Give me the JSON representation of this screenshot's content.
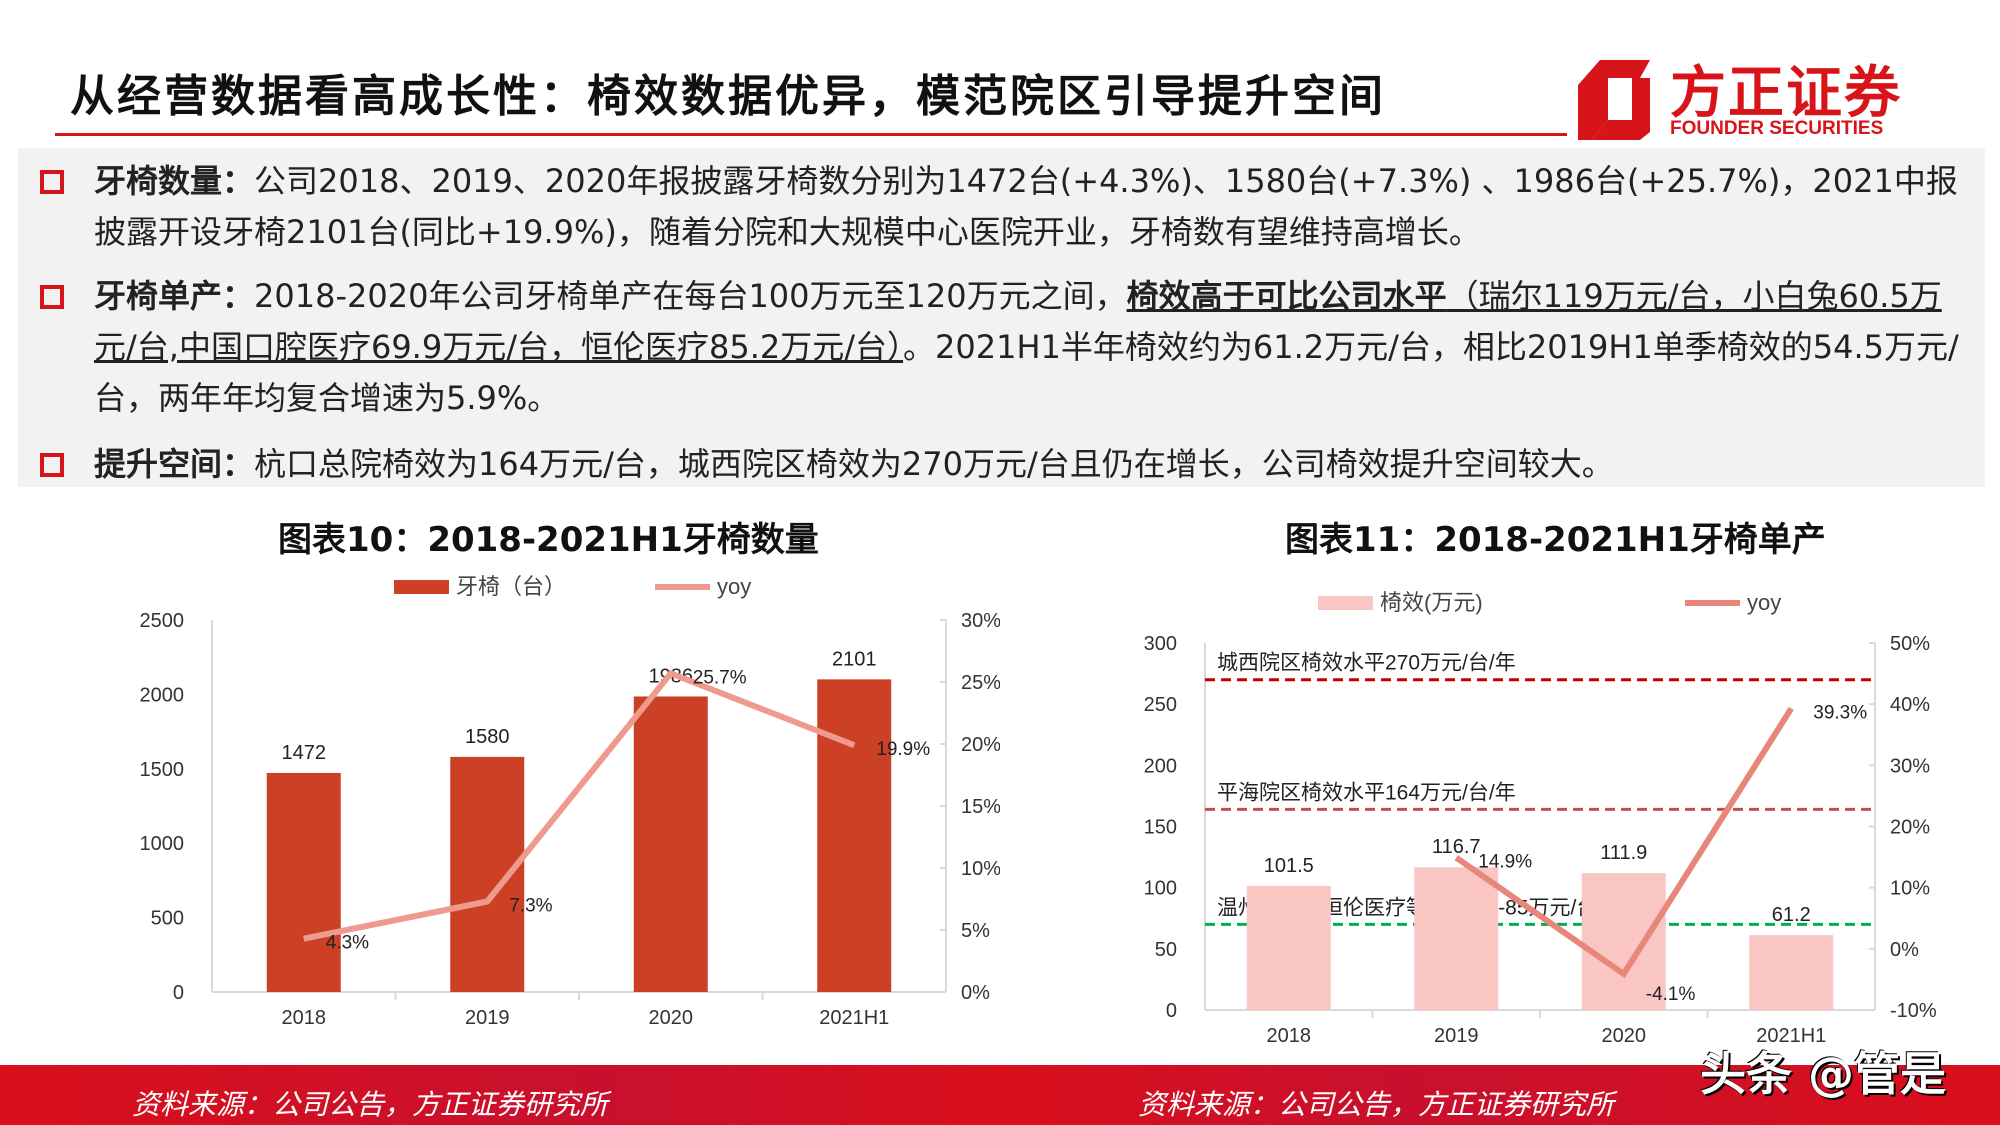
{
  "title": "从经营数据看高成长性：椅效数据优异，模范院区引导提升空间",
  "logo": {
    "cn": "方正证券",
    "en": "FOUNDER SECURITIES"
  },
  "bullets": [
    {
      "label": "牙椅数量：",
      "text": "公司2018、2019、2020年报披露牙椅数分别为1472台(+4.3%)、1580台(+7.3%) 、1986台(+25.7%)，2021中报披露开设牙椅2101台(同比+19.9%)，随着分院和大规模中心医院开业，牙椅数有望维持高增长。"
    },
    {
      "label": "牙椅单产：",
      "text": "2018-2020年公司牙椅单产在每台100万元至120万元之间，",
      "underline_bold": "椅效高于可比公司水平",
      "underline": "（瑞尔119万元/台，小白兔60.5万元/台,中国口腔医疗69.9万元/台，恒伦医疗85.2万元/台）",
      "tail": "。2021H1半年椅效约为61.2万元/台，相比2019H1单季椅效的54.5万元/台，两年年均复合增速为5.9%。"
    },
    {
      "label": "提升空间：",
      "text": "杭口总院椅效为164万元/台，城西院区椅效为270万元/台且仍在增长，公司椅效提升空间较大。"
    }
  ],
  "chart_data": [
    {
      "type": "bar+line",
      "title": "图表10：2018-2021H1牙椅数量",
      "categories": [
        "2018",
        "2019",
        "2020",
        "2021H1"
      ],
      "series": [
        {
          "name": "牙椅（台）",
          "type": "bar",
          "axis": "left",
          "values": [
            1472,
            1580,
            1986,
            2101
          ],
          "labels": [
            "1472",
            "1580",
            "1986",
            "2101"
          ],
          "color": "#cc4125"
        },
        {
          "name": "yoy",
          "type": "line",
          "axis": "right",
          "values": [
            4.3,
            7.3,
            25.7,
            19.9
          ],
          "labels": [
            "4.3%",
            "7.3%",
            "25.7%",
            "19.9%"
          ],
          "color": "#ef9a8e"
        }
      ],
      "ylim": [
        0,
        2500
      ],
      "yticks": [
        "0",
        "500",
        "1000",
        "1500",
        "2000",
        "2500"
      ],
      "y2lim": [
        0,
        30
      ],
      "y2ticks": [
        "0%",
        "5%",
        "10%",
        "15%",
        "20%",
        "25%",
        "30%"
      ],
      "legend": "top"
    },
    {
      "type": "bar+line",
      "title": "图表11：2018-2021H1牙椅单产",
      "categories": [
        "2018",
        "2019",
        "2020",
        "2021H1"
      ],
      "series": [
        {
          "name": "椅效(万元)",
          "type": "bar",
          "axis": "left",
          "values": [
            101.5,
            116.7,
            111.9,
            61.2
          ],
          "labels": [
            "101.5",
            "116.7",
            "111.9",
            "61.2"
          ],
          "color": "#f9c6c4"
        },
        {
          "name": "yoy",
          "type": "line",
          "axis": "right",
          "values": [
            null,
            14.9,
            -4.1,
            39.3
          ],
          "labels": [
            "",
            "14.9%",
            "-4.1%",
            "39.3%"
          ],
          "color": "#e8867a"
        }
      ],
      "ylim": [
        0,
        300
      ],
      "yticks": [
        "0",
        "50",
        "100",
        "150",
        "200",
        "250",
        "300"
      ],
      "y2lim": [
        -10,
        50
      ],
      "y2ticks": [
        "-10%",
        "0%",
        "10%",
        "20%",
        "30%",
        "40%",
        "50%"
      ],
      "legend": "top",
      "reference_lines": [
        {
          "value": 270,
          "label": "城西院区椅效水平270万元/台/年",
          "color": "#c00000"
        },
        {
          "value": 164,
          "label": "平海院区椅效水平164万元/台/年",
          "color": "#c0504d"
        },
        {
          "value": 70,
          "label": "温州牙科、恒伦医疗等椅效:70-85万元/台/年",
          "color": "#00b050"
        }
      ]
    }
  ],
  "footer": {
    "source_left": "资料来源：公司公告，方正证券研究所",
    "source_right": "资料来源：公司公告，方正证券研究所",
    "watermark": "头条 @管是"
  }
}
